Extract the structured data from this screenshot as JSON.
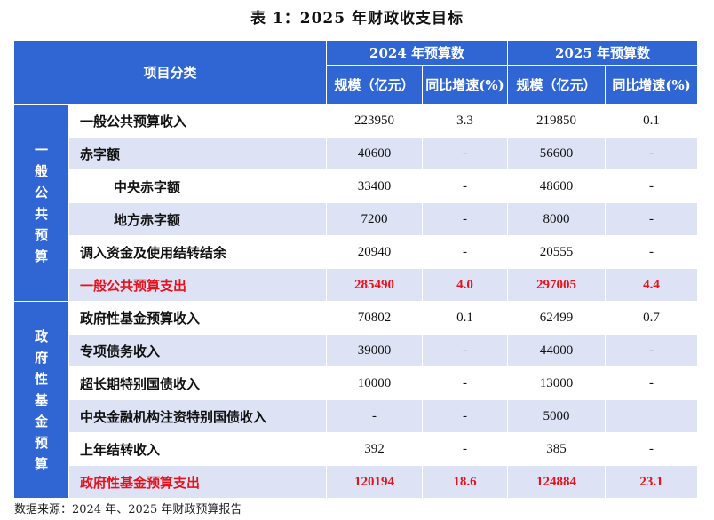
{
  "title": "表 1：2025 年财政收支目标",
  "header": {
    "category": "项目分类",
    "year1": "2024 年预算数",
    "year2": "2025 年预算数",
    "scale": "规模（亿元）",
    "growth": "同比增速(%)"
  },
  "sections": [
    {
      "label": "一般公共预算",
      "rows": [
        {
          "name": "一般公共预算收入",
          "v1": "223950",
          "g1": "3.3",
          "v2": "219850",
          "g2": "0.1"
        },
        {
          "name": "赤字额",
          "v1": "40600",
          "g1": "-",
          "v2": "56600",
          "g2": "-"
        },
        {
          "name": "中央赤字额",
          "v1": "33400",
          "g1": "-",
          "v2": "48600",
          "g2": "-"
        },
        {
          "name": "地方赤字额",
          "v1": "7200",
          "g1": "-",
          "v2": "8000",
          "g2": "-"
        },
        {
          "name": "调入资金及使用结转结余",
          "v1": "20940",
          "g1": "-",
          "v2": "20555",
          "g2": "-"
        },
        {
          "name": "一般公共预算支出",
          "v1": "285490",
          "g1": "4.0",
          "v2": "297005",
          "g2": "4.4"
        }
      ]
    },
    {
      "label": "政府性基金预算",
      "rows": [
        {
          "name": "政府性基金预算收入",
          "v1": "70802",
          "g1": "0.1",
          "v2": "62499",
          "g2": "0.7"
        },
        {
          "name": "专项债务收入",
          "v1": "39000",
          "g1": "-",
          "v2": "44000",
          "g2": "-"
        },
        {
          "name": "超长期特别国债收入",
          "v1": "10000",
          "g1": "-",
          "v2": "13000",
          "g2": "-"
        },
        {
          "name": "中央金融机构注资特别国债收入",
          "v1": "-",
          "g1": "-",
          "v2": "5000",
          "g2": ""
        },
        {
          "name": "上年结转收入",
          "v1": "392",
          "g1": "-",
          "v2": "385",
          "g2": "-"
        },
        {
          "name": "政府性基金预算支出",
          "v1": "120194",
          "g1": "18.6",
          "v2": "124884",
          "g2": "23.1"
        }
      ]
    }
  ],
  "source": "数据来源：2024 年、2025 年财政预算报告"
}
